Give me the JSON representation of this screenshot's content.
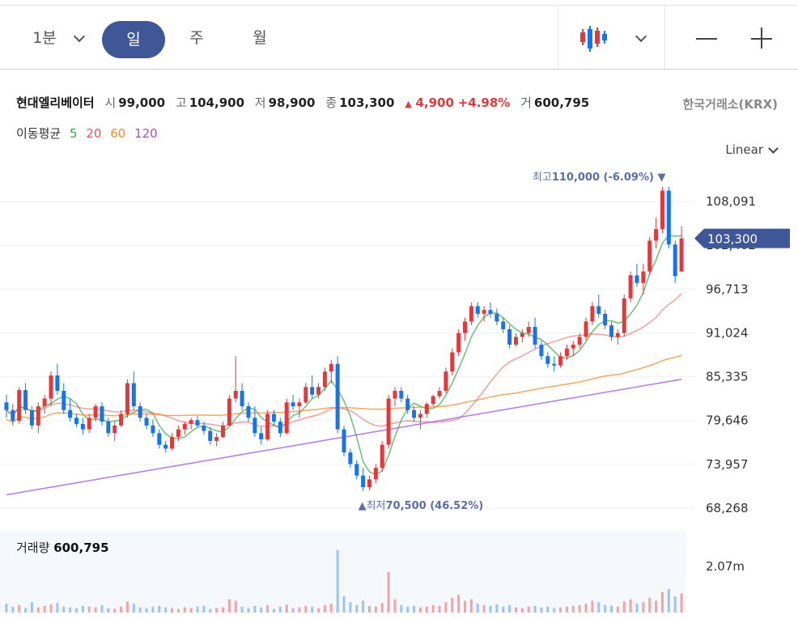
{
  "toolbar": {
    "timeframes": [
      {
        "label": "1분",
        "has_dropdown": true
      },
      {
        "label": "일",
        "selected": true
      },
      {
        "label": "주"
      },
      {
        "label": "월"
      }
    ],
    "chart_type_icon": "candlestick-icon",
    "zoom_out_icon": "minus-icon",
    "zoom_in_icon": "plus-icon"
  },
  "quote": {
    "name": "현대엘리베이터",
    "open_label": "시",
    "open": "99,000",
    "high_label": "고",
    "high": "104,900",
    "low_label": "저",
    "low": "98,900",
    "close_label": "종",
    "close": "103,300",
    "change_arrow": "▲",
    "change": "4,900",
    "change_pct": "+4.98%",
    "volume_label": "거",
    "volume": "600,795"
  },
  "exchange": "한국거래소(KRX)",
  "ma_legend": {
    "label": "이동평균",
    "periods": [
      {
        "value": "5",
        "color": "#3aa84a"
      },
      {
        "value": "20",
        "color": "#e94f4f"
      },
      {
        "value": "60",
        "color": "#f08a2a"
      },
      {
        "value": "120",
        "color": "#9b4fe0"
      }
    ]
  },
  "scale_mode": "Linear",
  "volume_panel": {
    "label": "거래량",
    "value": "600,795",
    "axis_tick": "2.07m"
  },
  "colors": {
    "up": "#e03a3e",
    "down": "#1b73e8",
    "accent": "#3f5697",
    "annotation": "#5b6ea3"
  },
  "chart_data": {
    "type": "candlestick",
    "y_ticks": [
      108091,
      102402,
      96713,
      91024,
      85335,
      79646,
      73957,
      68268
    ],
    "y_tick_labels": [
      "108,091",
      "102,402",
      "96,713",
      "91,024",
      "85,335",
      "79,646",
      "73,957",
      "68,268"
    ],
    "y_range": [
      65000,
      112000
    ],
    "current_price_label": "103,300",
    "high_annotation": {
      "label": "최고",
      "value": "110,000",
      "pct": "(-6.09%)"
    },
    "low_annotation": {
      "label": "최저",
      "value": "70,500",
      "pct": "(46.52%)"
    },
    "candles": [
      [
        82000,
        83000,
        80000,
        81000
      ],
      [
        81000,
        81800,
        79000,
        79600
      ],
      [
        79600,
        84000,
        79200,
        83600
      ],
      [
        83600,
        84500,
        80500,
        81000
      ],
      [
        81000,
        81500,
        78500,
        79000
      ],
      [
        79000,
        82000,
        78000,
        81500
      ],
      [
        81500,
        83000,
        80500,
        82500
      ],
      [
        82500,
        86000,
        81500,
        85500
      ],
      [
        85500,
        87000,
        83000,
        83500
      ],
      [
        83500,
        84500,
        80500,
        81000
      ],
      [
        81000,
        82500,
        79500,
        80000
      ],
      [
        80000,
        80500,
        78800,
        79200
      ],
      [
        79200,
        80000,
        77800,
        78500
      ],
      [
        78500,
        80500,
        78000,
        80000
      ],
      [
        80000,
        81800,
        79500,
        81500
      ],
      [
        81500,
        82000,
        79000,
        79500
      ],
      [
        79500,
        80000,
        77500,
        78000
      ],
      [
        78000,
        79500,
        77000,
        79000
      ],
      [
        79000,
        81000,
        78800,
        80500
      ],
      [
        80500,
        85000,
        80000,
        84500
      ],
      [
        84500,
        86000,
        81000,
        81500
      ],
      [
        81500,
        82000,
        79500,
        80000
      ],
      [
        80000,
        80500,
        78500,
        79000
      ],
      [
        79000,
        79800,
        77500,
        78000
      ],
      [
        78000,
        78500,
        76000,
        76500
      ],
      [
        76500,
        77000,
        75500,
        76000
      ],
      [
        76000,
        78000,
        75800,
        77500
      ],
      [
        77500,
        79000,
        77000,
        78500
      ],
      [
        78500,
        79500,
        77800,
        79200
      ],
      [
        79200,
        80000,
        78500,
        79700
      ],
      [
        79700,
        80200,
        78800,
        79000
      ],
      [
        79000,
        79500,
        77800,
        78300
      ],
      [
        78300,
        78800,
        76500,
        77000
      ],
      [
        77000,
        78000,
        76300,
        77500
      ],
      [
        77500,
        79500,
        77300,
        79000
      ],
      [
        79000,
        83000,
        79000,
        82500
      ],
      [
        82500,
        88000,
        82000,
        83500
      ],
      [
        83500,
        84500,
        81000,
        81500
      ],
      [
        81500,
        82000,
        79500,
        80000
      ],
      [
        80000,
        81500,
        77500,
        78000
      ],
      [
        78000,
        78800,
        76500,
        77200
      ],
      [
        77200,
        81000,
        77000,
        80500
      ],
      [
        80500,
        81000,
        79000,
        79500
      ],
      [
        79500,
        80000,
        77500,
        78000
      ],
      [
        78000,
        82500,
        77800,
        82000
      ],
      [
        82000,
        83000,
        81000,
        81500
      ],
      [
        81500,
        82500,
        80000,
        82000
      ],
      [
        82000,
        84500,
        81800,
        84000
      ],
      [
        84000,
        85500,
        82500,
        83000
      ],
      [
        83000,
        84500,
        82500,
        84000
      ],
      [
        84000,
        86500,
        83500,
        86000
      ],
      [
        86000,
        87500,
        84500,
        87000
      ],
      [
        87000,
        88000,
        78000,
        78500
      ],
      [
        78500,
        79000,
        75000,
        75500
      ],
      [
        75500,
        76000,
        73500,
        74000
      ],
      [
        74000,
        74500,
        72000,
        72500
      ],
      [
        72500,
        73500,
        70500,
        71000
      ],
      [
        71000,
        72500,
        70600,
        72000
      ],
      [
        72000,
        74000,
        71500,
        73500
      ],
      [
        73500,
        77000,
        73000,
        76500
      ],
      [
        76500,
        83000,
        76000,
        82500
      ],
      [
        82500,
        84000,
        81500,
        83500
      ],
      [
        83500,
        84000,
        82000,
        82500
      ],
      [
        82500,
        83000,
        80500,
        81000
      ],
      [
        81000,
        81500,
        79500,
        80000
      ],
      [
        80000,
        81000,
        78500,
        80500
      ],
      [
        80500,
        82000,
        80000,
        81800
      ],
      [
        81800,
        83000,
        81500,
        82800
      ],
      [
        82800,
        84000,
        82500,
        83500
      ],
      [
        83500,
        86500,
        83200,
        86000
      ],
      [
        86000,
        89000,
        85500,
        88500
      ],
      [
        88500,
        91500,
        88000,
        91000
      ],
      [
        91000,
        93000,
        90000,
        92500
      ],
      [
        92500,
        95000,
        92000,
        94500
      ],
      [
        94500,
        95000,
        93000,
        93500
      ],
      [
        93500,
        94500,
        92500,
        94000
      ],
      [
        94000,
        95000,
        93000,
        93500
      ],
      [
        93500,
        94200,
        92000,
        92500
      ],
      [
        92500,
        93000,
        91000,
        91500
      ],
      [
        91500,
        92000,
        89000,
        89500
      ],
      [
        89500,
        91000,
        89200,
        90500
      ],
      [
        90500,
        91500,
        89800,
        91000
      ],
      [
        91000,
        92500,
        90500,
        91800
      ],
      [
        91800,
        93000,
        89000,
        89500
      ],
      [
        89500,
        90000,
        87500,
        88000
      ],
      [
        88000,
        88500,
        86500,
        87000
      ],
      [
        87000,
        88000,
        86000,
        86800
      ],
      [
        86800,
        88500,
        86500,
        88000
      ],
      [
        88000,
        89500,
        87500,
        89000
      ],
      [
        89000,
        90000,
        88000,
        89500
      ],
      [
        89500,
        91000,
        89000,
        90500
      ],
      [
        90500,
        93000,
        90000,
        92500
      ],
      [
        92500,
        95000,
        92000,
        94500
      ],
      [
        94500,
        96000,
        93000,
        93500
      ],
      [
        93500,
        94000,
        91500,
        92000
      ],
      [
        92000,
        92500,
        90000,
        90500
      ],
      [
        90500,
        91500,
        89500,
        91000
      ],
      [
        91000,
        96000,
        90500,
        95500
      ],
      [
        95500,
        99000,
        95000,
        98500
      ],
      [
        98500,
        100000,
        97000,
        97500
      ],
      [
        97500,
        100000,
        96000,
        99000
      ],
      [
        99000,
        103500,
        98500,
        103000
      ],
      [
        103000,
        106000,
        102000,
        104500
      ],
      [
        104500,
        110000,
        104000,
        109500
      ],
      [
        109500,
        110000,
        102000,
        102500
      ],
      [
        102500,
        103000,
        97500,
        98400
      ],
      [
        99000,
        104900,
        98900,
        103300
      ]
    ],
    "volumes": [
      0.12,
      0.08,
      0.1,
      0.06,
      0.14,
      0.07,
      0.09,
      0.11,
      0.13,
      0.08,
      0.07,
      0.06,
      0.09,
      0.08,
      0.07,
      0.1,
      0.06,
      0.05,
      0.08,
      0.15,
      0.12,
      0.07,
      0.06,
      0.08,
      0.09,
      0.07,
      0.06,
      0.05,
      0.07,
      0.06,
      0.08,
      0.09,
      0.05,
      0.06,
      0.07,
      0.18,
      0.16,
      0.08,
      0.06,
      0.09,
      0.07,
      0.1,
      0.05,
      0.08,
      0.11,
      0.06,
      0.07,
      0.09,
      0.08,
      0.06,
      0.1,
      0.12,
      0.85,
      0.22,
      0.14,
      0.1,
      0.16,
      0.09,
      0.08,
      0.13,
      0.55,
      0.18,
      0.1,
      0.08,
      0.09,
      0.07,
      0.08,
      0.1,
      0.09,
      0.14,
      0.2,
      0.24,
      0.16,
      0.18,
      0.12,
      0.1,
      0.09,
      0.11,
      0.08,
      0.1,
      0.07,
      0.06,
      0.08,
      0.09,
      0.07,
      0.08,
      0.06,
      0.07,
      0.08,
      0.09,
      0.1,
      0.12,
      0.16,
      0.14,
      0.1,
      0.09,
      0.08,
      0.15,
      0.18,
      0.12,
      0.14,
      0.2,
      0.16,
      0.28,
      0.32,
      0.22,
      0.26
    ]
  }
}
